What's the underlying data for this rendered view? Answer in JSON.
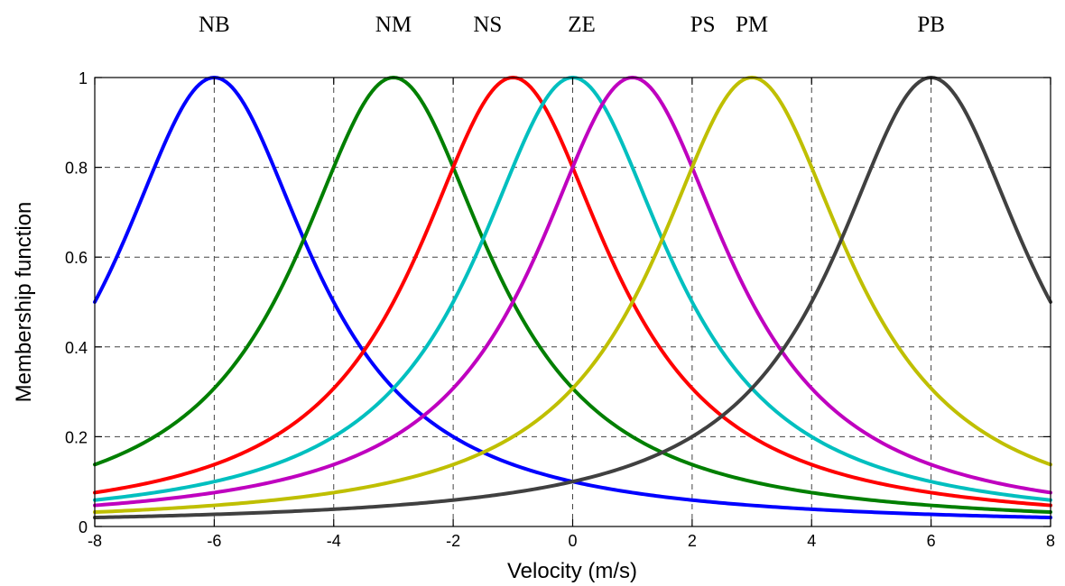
{
  "chart_data": {
    "type": "line",
    "xlabel": "Velocity (m/s)",
    "ylabel": "Membership function",
    "xlim": [
      -8,
      8
    ],
    "ylim": [
      0,
      1
    ],
    "x_ticks": [
      "-8",
      "-6",
      "-4",
      "-2",
      "0",
      "2",
      "4",
      "6",
      "8"
    ],
    "y_ticks": [
      "0",
      "0.2",
      "0.4",
      "0.6",
      "0.8",
      "1"
    ],
    "grid": true,
    "curve_shape": "generalized bell",
    "series": [
      {
        "name": "NB",
        "center": -6,
        "width": 2,
        "slope": 1,
        "color": "#0000ff"
      },
      {
        "name": "NM",
        "center": -3,
        "width": 2,
        "slope": 1,
        "color": "#007f00"
      },
      {
        "name": "NS",
        "center": -1,
        "width": 2,
        "slope": 1,
        "color": "#ff0000"
      },
      {
        "name": "ZE",
        "center": 0,
        "width": 2,
        "slope": 1,
        "color": "#00bfbf"
      },
      {
        "name": "PS",
        "center": 1,
        "width": 2,
        "slope": 1,
        "color": "#bf00bf"
      },
      {
        "name": "PM",
        "center": 3,
        "width": 2,
        "slope": 1,
        "color": "#bfbf00"
      },
      {
        "name": "PB",
        "center": 6,
        "width": 2,
        "slope": 1,
        "color": "#404040"
      }
    ]
  }
}
